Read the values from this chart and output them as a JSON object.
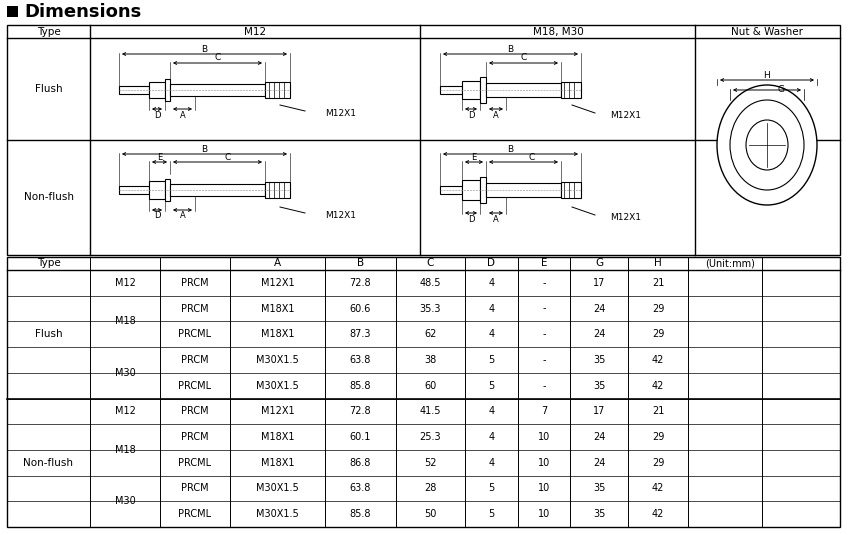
{
  "title": "Dimensions",
  "bg_color": "#ffffff",
  "unit_label": "(Unit:mm)",
  "flush_rows": [
    [
      "Flush",
      "M12",
      "PRCM",
      "M12X1",
      "72.8",
      "48.5",
      "4",
      "-",
      "17",
      "21"
    ],
    [
      "Flush",
      "M18",
      "PRCM",
      "M18X1",
      "60.6",
      "35.3",
      "4",
      "-",
      "24",
      "29"
    ],
    [
      "Flush",
      "M18",
      "PRCML",
      "M18X1",
      "87.3",
      "62",
      "4",
      "-",
      "24",
      "29"
    ],
    [
      "Flush",
      "M30",
      "PRCM",
      "M30X1.5",
      "63.8",
      "38",
      "5",
      "-",
      "35",
      "42"
    ],
    [
      "Flush",
      "M30",
      "PRCML",
      "M30X1.5",
      "85.8",
      "60",
      "5",
      "-",
      "35",
      "42"
    ]
  ],
  "nonflush_rows": [
    [
      "Non-flush",
      "M12",
      "PRCM",
      "M12X1",
      "72.8",
      "41.5",
      "4",
      "7",
      "17",
      "21"
    ],
    [
      "Non-flush",
      "M18",
      "PRCM",
      "M18X1",
      "60.1",
      "25.3",
      "4",
      "10",
      "24",
      "29"
    ],
    [
      "Non-flush",
      "M18",
      "PRCML",
      "M18X1",
      "86.8",
      "52",
      "4",
      "10",
      "24",
      "29"
    ],
    [
      "Non-flush",
      "M30",
      "PRCM",
      "M30X1.5",
      "63.8",
      "28",
      "5",
      "10",
      "35",
      "42"
    ],
    [
      "Non-flush",
      "M30",
      "PRCML",
      "M30X1.5",
      "85.8",
      "50",
      "5",
      "10",
      "35",
      "42"
    ]
  ]
}
